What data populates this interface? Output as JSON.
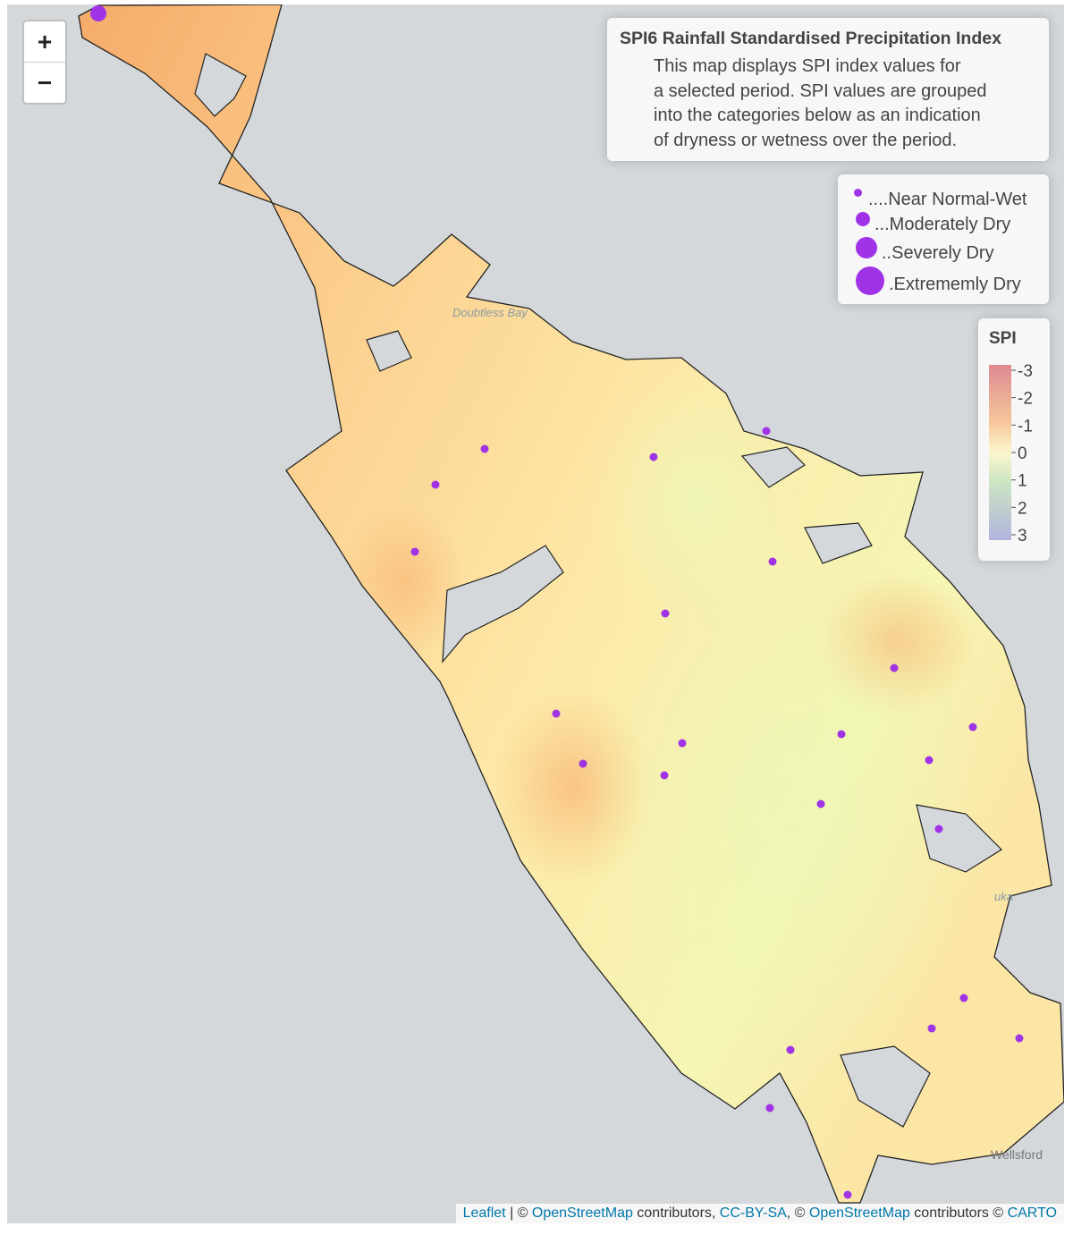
{
  "zoom_controls": [
    "+",
    "−"
  ],
  "info_box": {
    "title": "SPI6 Rainfall Standardised Precipitation Index",
    "lines": [
      "This map displays SPI index values for",
      "a selected period. SPI values are grouped",
      "into the categories below as an indication",
      "of dryness or wetness over the period."
    ]
  },
  "size_legend": [
    "....Near Normal-Wet",
    "...Moderately Dry",
    "..Severely Dry",
    ".Extrememly Dry"
  ],
  "spi_legend": {
    "title": "SPI",
    "ticks": [
      -3,
      -2,
      -1,
      0,
      1,
      2,
      3
    ]
  },
  "place_labels": {
    "doubtless_bay": "Doubtless Bay",
    "wellsford": "Wellsford",
    "kaiwaka_part": "uka"
  },
  "attribution": [
    {
      "text": "Leaflet",
      "link": true
    },
    {
      "text": " | © ",
      "link": false
    },
    {
      "text": "OpenStreetMap",
      "link": true
    },
    {
      "text": " contributors, ",
      "link": false
    },
    {
      "text": "CC-BY-SA",
      "link": true
    },
    {
      "text": ", © ",
      "link": false
    },
    {
      "text": "OpenStreetMap",
      "link": true
    },
    {
      "text": " contributors © ",
      "link": false
    },
    {
      "text": "CARTO",
      "link": true
    }
  ]
}
